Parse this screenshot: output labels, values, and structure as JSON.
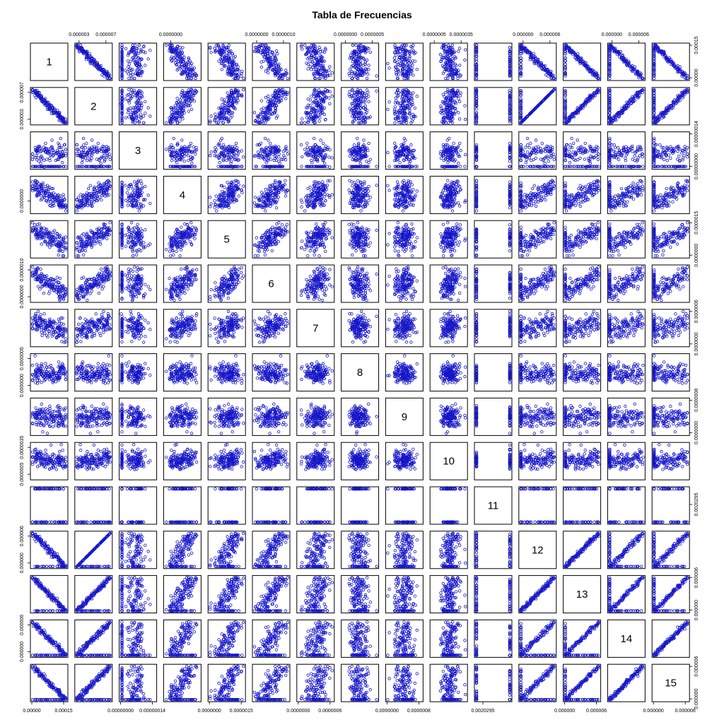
{
  "chart_data": {
    "type": "scatter",
    "title": "Tabla de Frecuencias",
    "variables": [
      "1",
      "2",
      "3",
      "4",
      "5",
      "6",
      "7",
      "8",
      "9",
      "10",
      "11",
      "12",
      "13",
      "14",
      "15"
    ],
    "point_color": "#1515c8",
    "axis_tick_labels": {
      "top": [
        {
          "column": "2",
          "labels": [
            "0.000003",
            "0.000007"
          ]
        },
        {
          "column": "4",
          "labels": [
            "0.0000000"
          ]
        },
        {
          "column": "6",
          "labels": [
            "0.0000000",
            "0.0000010"
          ]
        },
        {
          "column": "8",
          "labels": [
            "0.0000000",
            "0.0000005"
          ]
        },
        {
          "column": "10",
          "labels": [
            "0.0000005",
            "0.0000035"
          ]
        },
        {
          "column": "12",
          "labels": [
            "0.000000",
            "0.000006"
          ]
        },
        {
          "column": "14",
          "labels": [
            "0.000000",
            "0.000006"
          ]
        }
      ],
      "bottom": [
        {
          "column": "1",
          "labels": [
            "0.00000",
            "0.00015"
          ]
        },
        {
          "column": "3",
          "labels": [
            "0.00000000",
            "0.00000014"
          ]
        },
        {
          "column": "5",
          "labels": [
            "0.0000000",
            "0.0000015"
          ]
        },
        {
          "column": "7",
          "labels": [
            "0.0000000",
            "0.0000006"
          ]
        },
        {
          "column": "9",
          "labels": [
            "0.0000000",
            "0.0000008"
          ]
        },
        {
          "column": "11",
          "labels": [
            "0.0020295"
          ]
        },
        {
          "column": "13",
          "labels": [
            "0.000000",
            "0.000006"
          ]
        },
        {
          "column": "15",
          "labels": [
            "0.000000",
            "0.000006"
          ]
        }
      ],
      "left": [
        {
          "row": "2",
          "labels": [
            "0.000003",
            "0.000007"
          ]
        },
        {
          "row": "4",
          "labels": [
            "0.0000000"
          ]
        },
        {
          "row": "6",
          "labels": [
            "0.0000000",
            "0.0000010"
          ]
        },
        {
          "row": "8",
          "labels": [
            "0.0000000",
            "0.0000005"
          ]
        },
        {
          "row": "10",
          "labels": [
            "0.0000005",
            "0.0000035"
          ]
        },
        {
          "row": "12",
          "labels": [
            "0.000000",
            "0.000006"
          ]
        },
        {
          "row": "14",
          "labels": [
            "0.000000",
            "0.000006"
          ]
        }
      ],
      "right": [
        {
          "row": "1",
          "labels": [
            "0.00000",
            "0.00015"
          ]
        },
        {
          "row": "3",
          "labels": [
            "0.00000000",
            "0.00000014"
          ]
        },
        {
          "row": "5",
          "labels": [
            "0.0000000",
            "0.0000015"
          ]
        },
        {
          "row": "7",
          "labels": [
            "0.0000000",
            "0.0000006"
          ]
        },
        {
          "row": "9",
          "labels": [
            "0.0000000",
            "0.0000008"
          ]
        },
        {
          "row": "11",
          "labels": [
            "0.0020295"
          ]
        },
        {
          "row": "13",
          "labels": [
            "0.000000",
            "0.000006"
          ]
        },
        {
          "row": "15",
          "labels": [
            "0.000000",
            "0.000006"
          ]
        }
      ]
    },
    "relationships": {
      "strong_positive": [
        [
          "2",
          "12"
        ],
        [
          "2",
          "13"
        ],
        [
          "2",
          "14"
        ],
        [
          "2",
          "15"
        ],
        [
          "12",
          "13"
        ],
        [
          "14",
          "15"
        ]
      ],
      "strong_negative": [
        [
          "1",
          "2"
        ],
        [
          "1",
          "12"
        ],
        [
          "1",
          "13"
        ],
        [
          "1",
          "14"
        ],
        [
          "1",
          "15"
        ]
      ],
      "moderate_positive": [
        [
          "2",
          "4"
        ],
        [
          "2",
          "5"
        ],
        [
          "2",
          "6"
        ],
        [
          "4",
          "5"
        ],
        [
          "4",
          "6"
        ],
        [
          "5",
          "6"
        ],
        [
          "4",
          "12"
        ],
        [
          "4",
          "13"
        ],
        [
          "4",
          "14"
        ],
        [
          "4",
          "15"
        ],
        [
          "5",
          "12"
        ],
        [
          "5",
          "13"
        ],
        [
          "5",
          "14"
        ],
        [
          "5",
          "15"
        ],
        [
          "6",
          "12"
        ],
        [
          "6",
          "13"
        ],
        [
          "6",
          "14"
        ],
        [
          "6",
          "15"
        ],
        [
          "7",
          "12"
        ],
        [
          "7",
          "13"
        ],
        [
          "10",
          "12"
        ],
        [
          "10",
          "13"
        ]
      ],
      "moderate_negative": [
        [
          "1",
          "4"
        ],
        [
          "1",
          "5"
        ],
        [
          "1",
          "6"
        ],
        [
          "1",
          "7"
        ]
      ],
      "binary_variable": "11",
      "bimodal_variable_pairs": [
        [
          "12",
          "15"
        ],
        [
          "13",
          "15"
        ],
        [
          "12",
          "14"
        ],
        [
          "13",
          "14"
        ],
        [
          "11",
          "12"
        ],
        [
          "11",
          "13"
        ]
      ]
    }
  }
}
